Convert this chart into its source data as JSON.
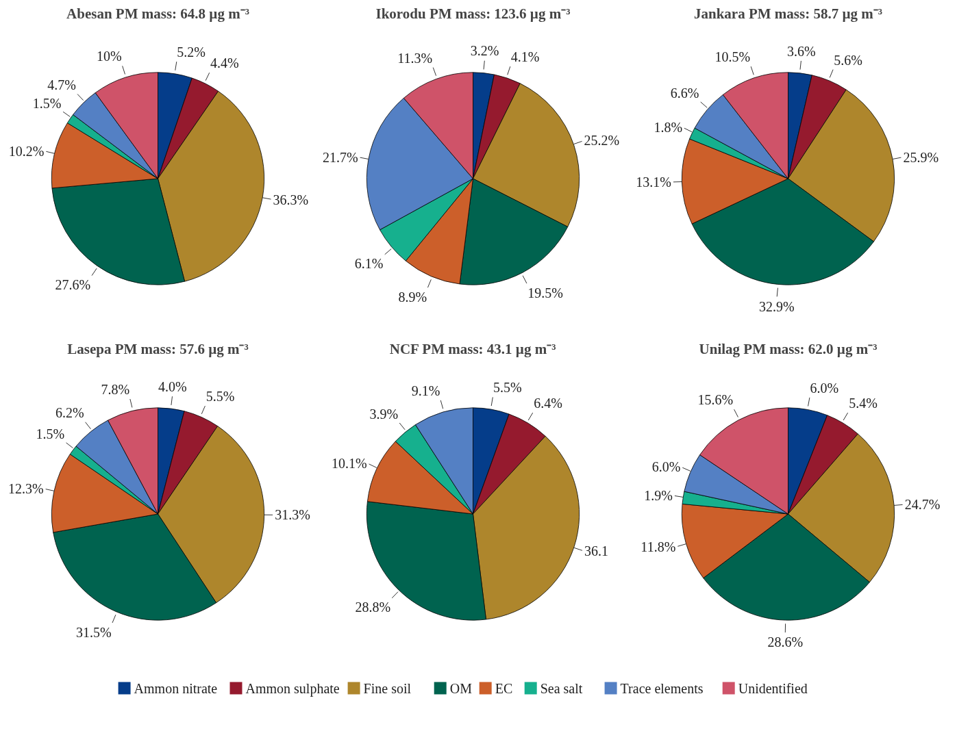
{
  "chart_data": [
    {
      "type": "pie",
      "title": "Abesan PM mass: 64.8 µg m⁻³",
      "categories": [
        "Ammon nitrate",
        "Ammon sulphate",
        "Fine soil",
        "OM",
        "EC",
        "Sea salt",
        "Trace elements",
        "Unidentified"
      ],
      "values": [
        5.2,
        4.4,
        36.3,
        27.6,
        10.2,
        1.5,
        4.7,
        10
      ],
      "value_labels": [
        "5.2%",
        "4.4%",
        "36.3%",
        "27.6%",
        "10.2%",
        "1.5%",
        "4.7%",
        "10%"
      ],
      "colors": [
        "#053d8a",
        "#951a2e",
        "#ae862c",
        "#00634f",
        "#cc5f2a",
        "#16b08e",
        "#5480c4",
        "#cf5369"
      ],
      "legend": "bottom"
    },
    {
      "type": "pie",
      "title": "Ikorodu PM mass: 123.6 µg m⁻³",
      "categories": [
        null,
        null,
        null,
        null,
        null,
        null,
        null,
        null
      ],
      "values": [
        3.2,
        4.1,
        25.2,
        19.5,
        8.9,
        6.1,
        21.7,
        11.3
      ],
      "value_labels": [
        "3.2%",
        "4.1%",
        "25.2%",
        "19.5%",
        "8.9%",
        "6.1%",
        "21.7%",
        "11.3%"
      ],
      "colors": [
        "#053d8a",
        "#951a2e",
        "#ae862c",
        "#00634f",
        "#cc5f2a",
        "#16b08e",
        "#5480c4",
        "#cf5369"
      ]
    },
    {
      "type": "pie",
      "title": "Jankara PM mass: 58.7 µg m⁻³",
      "categories": [
        null,
        null,
        null,
        null,
        null,
        null,
        null,
        null
      ],
      "values": [
        3.6,
        5.6,
        25.9,
        32.9,
        13.1,
        1.8,
        6.6,
        10.5
      ],
      "value_labels": [
        "3.6%",
        "5.6%",
        "25.9%",
        "32.9%",
        "13.1%",
        "1.8%",
        "6.6%",
        "10.5%"
      ],
      "colors": [
        "#053d8a",
        "#951a2e",
        "#ae862c",
        "#00634f",
        "#cc5f2a",
        "#16b08e",
        "#5480c4",
        "#cf5369"
      ]
    },
    {
      "type": "pie",
      "title": "Lasepa PM mass: 57.6 µg m⁻³",
      "categories": [
        null,
        null,
        null,
        null,
        null,
        null,
        null,
        null
      ],
      "values": [
        4.0,
        5.5,
        31.3,
        31.5,
        12.3,
        1.5,
        6.2,
        7.8
      ],
      "value_labels": [
        "4.0%",
        "5.5%",
        "31.3%",
        "31.5%",
        "12.3%",
        "1.5%",
        "6.2%",
        "7.8%"
      ],
      "colors": [
        "#053d8a",
        "#951a2e",
        "#ae862c",
        "#00634f",
        "#cc5f2a",
        "#16b08e",
        "#5480c4",
        "#cf5369"
      ]
    },
    {
      "type": "pie",
      "title": "NCF PM mass: 43.1 µg m⁻³",
      "categories": [
        null,
        null,
        null,
        null,
        null,
        null,
        null
      ],
      "values": [
        5.5,
        6.4,
        36.1,
        28.8,
        10.1,
        3.9,
        9.1
      ],
      "value_labels": [
        "5.5%",
        "6.4%",
        "36.1",
        "28.8%",
        "10.1%",
        "3.9%",
        "9.1%"
      ],
      "colors": [
        "#053d8a",
        "#951a2e",
        "#ae862c",
        "#00634f",
        "#cc5f2a",
        "#16b08e",
        "#5480c4"
      ]
    },
    {
      "type": "pie",
      "title": "Unilag PM mass: 62.0 µg m⁻³",
      "categories": [
        null,
        null,
        null,
        null,
        null,
        null,
        null,
        null
      ],
      "values": [
        6.0,
        5.4,
        24.7,
        28.6,
        11.8,
        1.9,
        6.0,
        15.6
      ],
      "value_labels": [
        "6.0%",
        "5.4%",
        "24.7%",
        "28.6%",
        "11.8%",
        "1.9%",
        "6.0%",
        "15.6%"
      ],
      "colors": [
        "#053d8a",
        "#951a2e",
        "#ae862c",
        "#00634f",
        "#cc5f2a",
        "#16b08e",
        "#5480c4",
        "#cf5369"
      ]
    }
  ]
}
